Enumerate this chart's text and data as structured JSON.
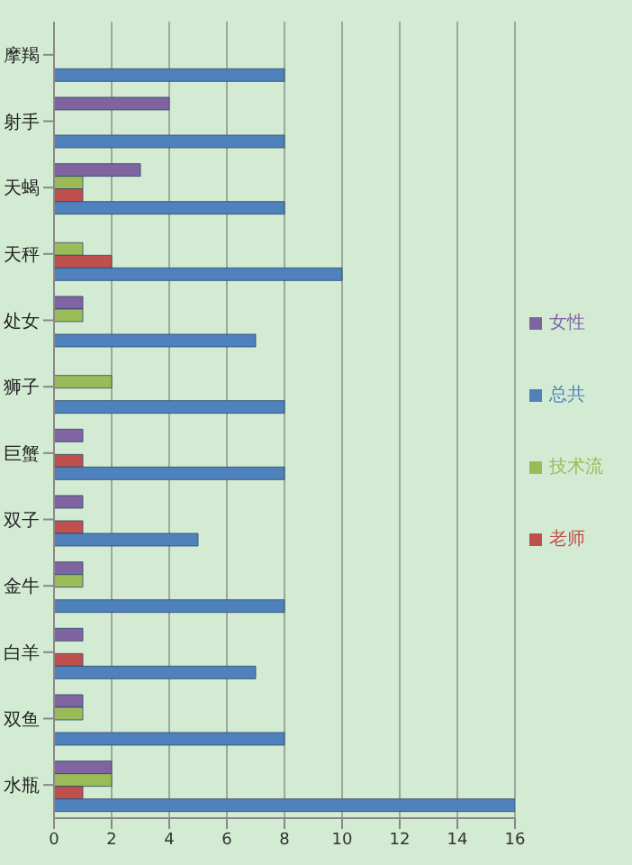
{
  "chart_data": {
    "type": "bar",
    "orientation": "horizontal",
    "categories": [
      "摩羯",
      "射手",
      "天蝎",
      "天秤",
      "处女",
      "狮子",
      "巨蟹",
      "双子",
      "金牛",
      "白羊",
      "双鱼",
      "水瓶"
    ],
    "series": [
      {
        "name": "女性",
        "color": "#8064a2",
        "values": [
          0,
          4,
          3,
          0,
          1,
          0,
          1,
          1,
          1,
          1,
          1,
          2
        ]
      },
      {
        "name": "技术流",
        "color": "#9bbb59",
        "values": [
          0,
          0,
          1,
          1,
          1,
          2,
          0,
          0,
          1,
          0,
          1,
          2
        ]
      },
      {
        "name": "老师",
        "color": "#c0504d",
        "values": [
          0,
          0,
          1,
          2,
          0,
          0,
          1,
          1,
          0,
          1,
          0,
          1
        ]
      },
      {
        "name": "总共",
        "color": "#4f81bd",
        "values": [
          8,
          8,
          8,
          10,
          7,
          8,
          8,
          5,
          8,
          7,
          8,
          16
        ]
      }
    ],
    "xlim": [
      0,
      16
    ],
    "xticks": [
      0,
      2,
      4,
      6,
      8,
      10,
      12,
      14,
      16
    ],
    "grid": "x",
    "legend": "right"
  }
}
